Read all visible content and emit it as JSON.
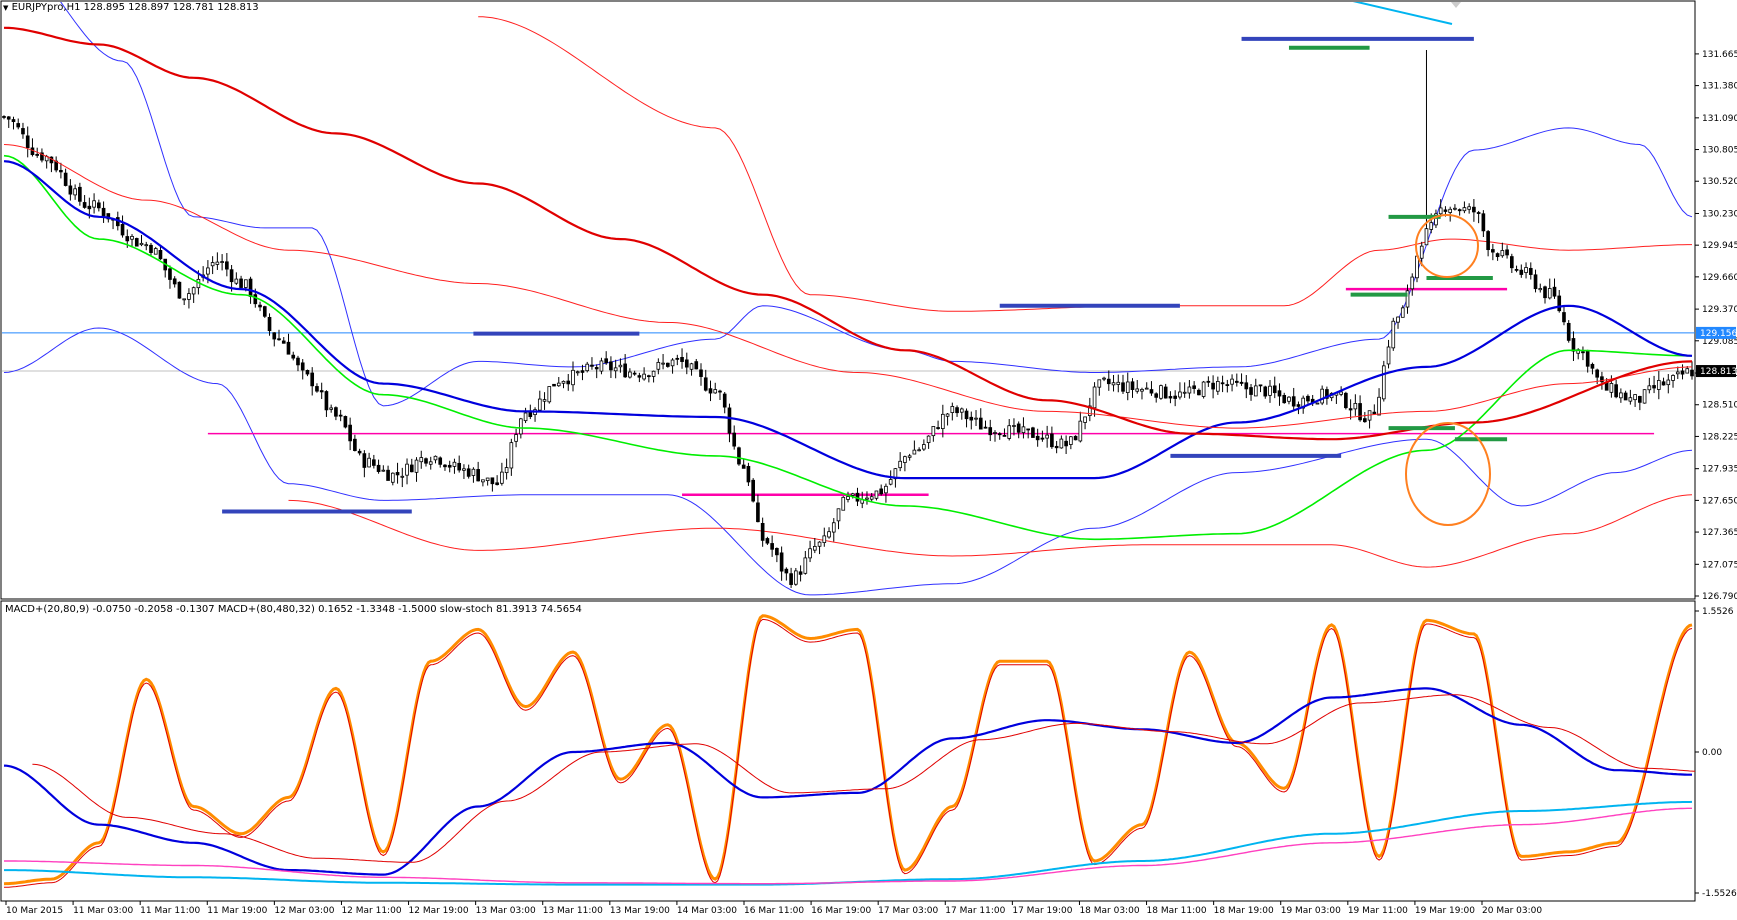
{
  "window": {
    "title": "EURJPYpro,H1",
    "ohlc": "128.895 128.897 128.781 128.813",
    "indicator_header": "MACD+(20,80,9) -0.0750 -0.2058 -0.1307   MACD+(80,480,32) 0.1652 -1.3348 -1.5000   slow-stoch 81.3913 74.5654"
  },
  "colors": {
    "candle": "#000000",
    "ema_green": "#00ee00",
    "ma_blue": "#0000dd",
    "ma_red": "#e00000",
    "bollinger_blue": "#3030ff",
    "bollinger_red": "#ff2020",
    "support_blue": "#3344bb",
    "level_green": "#229944",
    "level_pink": "#ff00aa",
    "hline_blue": "#2288ff",
    "circle_orange": "#ff8020",
    "stoch_orange": "#ff8c00",
    "macd_cyan": "#00b4f0",
    "macd_magenta": "#ff40c0"
  },
  "chart_data": [
    {
      "type": "candlestick",
      "symbol": "EURJPYpro",
      "timeframe": "H1",
      "y_ticks": [
        "131.665",
        "131.380",
        "131.090",
        "130.805",
        "130.520",
        "130.230",
        "129.945",
        "129.660",
        "129.370",
        "129.085",
        "128.795",
        "128.510",
        "128.225",
        "127.935",
        "127.650",
        "127.365",
        "127.075",
        "126.790"
      ],
      "ylim": [
        126.79,
        131.88
      ],
      "price_labels": {
        "current": "128.813",
        "line": "129.156"
      },
      "current_price": 128.813,
      "line_price": 129.156,
      "x_labels": [
        "10 Mar 2015",
        "11 Mar 03:00",
        "11 Mar 11:00",
        "11 Mar 19:00",
        "12 Mar 03:00",
        "12 Mar 11:00",
        "12 Mar 19:00",
        "13 Mar 03:00",
        "13 Mar 11:00",
        "13 Mar 19:00",
        "14 Mar 03:00",
        "16 Mar 11:00",
        "16 Mar 19:00",
        "17 Mar 03:00",
        "17 Mar 11:00",
        "17 Mar 19:00",
        "18 Mar 03:00",
        "18 Mar 11:00",
        "18 Mar 19:00",
        "19 Mar 03:00",
        "19 Mar 11:00",
        "19 Mar 19:00",
        "20 Mar 03:00"
      ],
      "price_path": [
        [
          0,
          131.1
        ],
        [
          8,
          130.75
        ],
        [
          18,
          130.3
        ],
        [
          30,
          129.95
        ],
        [
          38,
          129.5
        ],
        [
          45,
          129.8
        ],
        [
          50,
          129.6
        ],
        [
          58,
          129.1
        ],
        [
          64,
          128.75
        ],
        [
          70,
          128.4
        ],
        [
          76,
          128.0
        ],
        [
          82,
          127.88
        ],
        [
          90,
          128.05
        ],
        [
          97,
          127.92
        ],
        [
          104,
          127.8
        ],
        [
          110,
          128.45
        ],
        [
          118,
          128.75
        ],
        [
          126,
          128.85
        ],
        [
          134,
          128.8
        ],
        [
          142,
          128.9
        ],
        [
          150,
          128.65
        ],
        [
          156,
          127.95
        ],
        [
          160,
          127.3
        ],
        [
          166,
          126.95
        ],
        [
          172,
          127.25
        ],
        [
          178,
          127.65
        ],
        [
          184,
          127.72
        ],
        [
          192,
          128.1
        ],
        [
          200,
          128.45
        ],
        [
          208,
          128.3
        ],
        [
          216,
          128.25
        ],
        [
          224,
          128.15
        ],
        [
          232,
          128.7
        ],
        [
          240,
          128.65
        ],
        [
          248,
          128.6
        ],
        [
          256,
          128.7
        ],
        [
          264,
          128.65
        ],
        [
          272,
          128.55
        ],
        [
          280,
          128.6
        ],
        [
          288,
          128.4
        ],
        [
          294,
          129.3
        ],
        [
          300,
          130.05
        ],
        [
          304,
          130.3
        ],
        [
          310,
          130.25
        ],
        [
          314,
          129.9
        ],
        [
          320,
          129.7
        ],
        [
          326,
          129.5
        ],
        [
          332,
          129.0
        ],
        [
          338,
          128.65
        ],
        [
          344,
          128.55
        ],
        [
          350,
          128.7
        ],
        [
          356,
          128.81
        ]
      ],
      "series": [
        {
          "values": [
            [
              0,
              130.75
            ],
            [
              20,
              130.0
            ],
            [
              50,
              129.5
            ],
            [
              80,
              128.6
            ],
            [
              110,
              128.3
            ],
            [
              150,
              128.05
            ],
            [
              190,
              127.6
            ],
            [
              230,
              127.3
            ],
            [
              260,
              127.35
            ],
            [
              300,
              128.1
            ],
            [
              330,
              129.0
            ],
            [
              356,
              128.95
            ]
          ]
        },
        {
          "values": [
            [
              0,
              130.7
            ],
            [
              20,
              130.2
            ],
            [
              50,
              129.55
            ],
            [
              80,
              128.7
            ],
            [
              110,
              128.45
            ],
            [
              150,
              128.4
            ],
            [
              190,
              127.85
            ],
            [
              230,
              127.85
            ],
            [
              260,
              128.35
            ],
            [
              300,
              128.85
            ],
            [
              330,
              129.4
            ],
            [
              356,
              128.95
            ]
          ]
        },
        {
          "values": [
            [
              0,
              130.85
            ],
            [
              30,
              130.35
            ],
            [
              60,
              129.9
            ],
            [
              100,
              129.6
            ],
            [
              140,
              129.25
            ],
            [
              180,
              128.8
            ],
            [
              220,
              128.45
            ],
            [
              260,
              128.3
            ],
            [
              300,
              128.45
            ],
            [
              330,
              128.7
            ],
            [
              356,
              128.85
            ]
          ]
        },
        {
          "values": [
            [
              0,
              131.9
            ],
            [
              20,
              131.75
            ],
            [
              40,
              131.45
            ],
            [
              70,
              130.95
            ],
            [
              100,
              130.5
            ],
            [
              130,
              130.0
            ],
            [
              160,
              129.5
            ],
            [
              190,
              129.0
            ],
            [
              220,
              128.55
            ],
            [
              250,
              128.25
            ],
            [
              280,
              128.2
            ],
            [
              310,
              128.35
            ],
            [
              356,
              128.9
            ]
          ]
        }
      ],
      "bollinger": {
        "upper": [
          [
            0,
            132.6
          ],
          [
            25,
            131.6
          ],
          [
            40,
            130.2
          ],
          [
            55,
            130.1
          ],
          [
            65,
            130.1
          ],
          [
            80,
            128.5
          ],
          [
            100,
            128.9
          ],
          [
            120,
            128.85
          ],
          [
            150,
            129.1
          ],
          [
            160,
            129.4
          ],
          [
            190,
            129.0
          ],
          [
            200,
            128.9
          ],
          [
            230,
            128.8
          ],
          [
            260,
            128.85
          ],
          [
            290,
            129.1
          ],
          [
            310,
            130.8
          ],
          [
            330,
            131.0
          ],
          [
            345,
            130.85
          ],
          [
            356,
            130.2
          ]
        ],
        "lower": [
          [
            0,
            128.8
          ],
          [
            20,
            129.2
          ],
          [
            45,
            128.7
          ],
          [
            60,
            127.8
          ],
          [
            80,
            127.65
          ],
          [
            110,
            127.7
          ],
          [
            140,
            127.7
          ],
          [
            170,
            126.8
          ],
          [
            200,
            126.9
          ],
          [
            230,
            127.4
          ],
          [
            260,
            127.9
          ],
          [
            300,
            128.2
          ],
          [
            320,
            127.6
          ],
          [
            340,
            127.9
          ],
          [
            356,
            128.1
          ]
        ],
        "upper_wide": [
          [
            100,
            132.0
          ],
          [
            150,
            131.0
          ],
          [
            170,
            129.5
          ],
          [
            200,
            129.35
          ],
          [
            240,
            129.4
          ],
          [
            270,
            129.4
          ],
          [
            290,
            129.9
          ],
          [
            305,
            130.0
          ],
          [
            330,
            129.9
          ],
          [
            356,
            129.95
          ]
        ],
        "lower_wide": [
          [
            60,
            127.65
          ],
          [
            100,
            127.2
          ],
          [
            150,
            127.4
          ],
          [
            200,
            127.15
          ],
          [
            240,
            127.25
          ],
          [
            280,
            127.25
          ],
          [
            300,
            127.05
          ],
          [
            330,
            127.35
          ],
          [
            356,
            127.7
          ]
        ]
      },
      "levels": {
        "support_blue": [
          [
            46,
            86,
            127.55
          ],
          [
            99,
            134,
            129.15
          ],
          [
            210,
            248,
            129.4
          ],
          [
            246,
            282,
            128.05
          ],
          [
            261,
            310,
            131.8
          ],
          [
            131,
            172,
            126.75
          ]
        ],
        "green": [
          [
            271,
            288,
            131.72
          ],
          [
            292,
            303,
            130.2
          ],
          [
            284,
            296,
            129.5
          ],
          [
            300,
            314,
            129.65
          ],
          [
            292,
            306,
            128.3
          ],
          [
            306,
            317,
            128.2
          ]
        ],
        "pink": [
          [
            43,
            348,
            128.25
          ],
          [
            143,
            195,
            127.7
          ],
          [
            283,
            317,
            129.55
          ]
        ]
      }
    },
    {
      "type": "line",
      "ylim": [
        -1.5526,
        1.5526
      ],
      "y_ticks": [
        "1.5526",
        "0.00",
        "-1.5526"
      ],
      "series": [
        {
          "values": [
            [
              0,
              -1.45
            ],
            [
              10,
              -1.4
            ],
            [
              20,
              -1.0
            ],
            [
              30,
              0.8
            ],
            [
              40,
              -0.6
            ],
            [
              50,
              -0.9
            ],
            [
              60,
              -0.5
            ],
            [
              70,
              0.7
            ],
            [
              80,
              -1.1
            ],
            [
              90,
              1.0
            ],
            [
              100,
              1.35
            ],
            [
              110,
              0.5
            ],
            [
              120,
              1.1
            ],
            [
              130,
              -0.3
            ],
            [
              140,
              0.3
            ],
            [
              150,
              -1.4
            ],
            [
              160,
              1.5
            ],
            [
              170,
              1.25
            ],
            [
              180,
              1.35
            ],
            [
              190,
              -1.3
            ],
            [
              200,
              -0.6
            ],
            [
              210,
              1.0
            ],
            [
              220,
              1.0
            ],
            [
              230,
              -1.2
            ],
            [
              240,
              -0.8
            ],
            [
              250,
              1.1
            ],
            [
              260,
              0.1
            ],
            [
              270,
              -0.4
            ],
            [
              280,
              1.4
            ],
            [
              290,
              -1.15
            ],
            [
              300,
              1.45
            ],
            [
              310,
              1.3
            ],
            [
              320,
              -1.15
            ],
            [
              330,
              -1.1
            ],
            [
              340,
              -1.0
            ],
            [
              356,
              1.4
            ]
          ]
        },
        {
          "values": [
            [
              0,
              -0.15
            ],
            [
              20,
              -0.8
            ],
            [
              40,
              -1.0
            ],
            [
              60,
              -1.3
            ],
            [
              80,
              -1.35
            ],
            [
              100,
              -0.6
            ],
            [
              120,
              0.0
            ],
            [
              140,
              0.1
            ],
            [
              160,
              -0.5
            ],
            [
              180,
              -0.45
            ],
            [
              200,
              0.15
            ],
            [
              220,
              0.35
            ],
            [
              240,
              0.25
            ],
            [
              260,
              0.1
            ],
            [
              280,
              0.6
            ],
            [
              300,
              0.7
            ],
            [
              320,
              0.3
            ],
            [
              340,
              -0.2
            ],
            [
              356,
              -0.25
            ]
          ]
        },
        {
          "values": [
            [
              0,
              -1.3
            ],
            [
              40,
              -1.38
            ],
            [
              80,
              -1.44
            ],
            [
              120,
              -1.46
            ],
            [
              160,
              -1.46
            ],
            [
              200,
              -1.4
            ],
            [
              240,
              -1.2
            ],
            [
              280,
              -0.9
            ],
            [
              320,
              -0.65
            ],
            [
              356,
              -0.55
            ]
          ]
        },
        {
          "values": [
            [
              0,
              -1.2
            ],
            [
              40,
              -1.25
            ],
            [
              80,
              -1.38
            ],
            [
              120,
              -1.44
            ],
            [
              160,
              -1.45
            ],
            [
              200,
              -1.42
            ],
            [
              240,
              -1.25
            ],
            [
              280,
              -1.0
            ],
            [
              320,
              -0.8
            ],
            [
              356,
              -0.62
            ]
          ]
        }
      ]
    }
  ]
}
